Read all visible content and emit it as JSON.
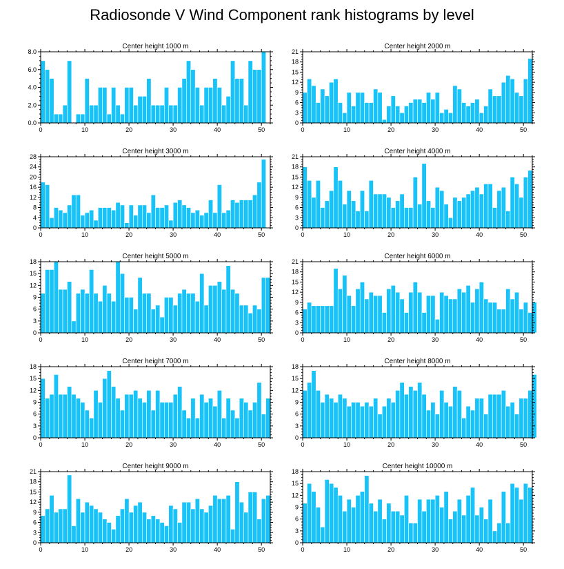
{
  "title": "Radiosonde V Wind Component rank histograms by level",
  "colors": {
    "bar": "#19c3f7",
    "frame": "#000000",
    "background": "#ffffff"
  },
  "chart_data": [
    {
      "type": "bar",
      "title": "Center height 1000 m",
      "xlabel": "",
      "ylabel": "",
      "xlim": [
        0,
        52
      ],
      "ylim": [
        0,
        8
      ],
      "x_ticks": [
        0,
        10,
        20,
        30,
        40,
        50
      ],
      "y_ticks": [
        0,
        2,
        4,
        6,
        8
      ],
      "y_tick_labels": [
        "0.0",
        "2.0",
        "4.0",
        "6.0",
        "8.0"
      ],
      "values": [
        7,
        6,
        5,
        1,
        1,
        2,
        7,
        0,
        1,
        1,
        5,
        2,
        2,
        4,
        4,
        1,
        4,
        2,
        1,
        4,
        4,
        2,
        3,
        3,
        5,
        2,
        2,
        2,
        4,
        2,
        2,
        4,
        5,
        7,
        6,
        4,
        2,
        4,
        4,
        5,
        4,
        2,
        3,
        7,
        5,
        5,
        2,
        7,
        6,
        6,
        8
      ]
    },
    {
      "type": "bar",
      "title": "Center height 2000 m",
      "xlabel": "",
      "ylabel": "",
      "xlim": [
        0,
        52
      ],
      "ylim": [
        0,
        21
      ],
      "x_ticks": [
        0,
        10,
        20,
        30,
        40,
        50
      ],
      "y_ticks": [
        0,
        3,
        6,
        9,
        12,
        15,
        18,
        21
      ],
      "y_tick_labels": [
        "0",
        "3",
        "6",
        "9",
        "12",
        "15",
        "18",
        "21"
      ],
      "values": [
        9,
        13,
        11,
        6,
        10,
        8,
        12,
        13,
        6,
        3,
        9,
        5,
        9,
        9,
        6,
        6,
        10,
        9,
        1,
        5,
        8,
        5,
        3,
        5,
        6,
        7,
        7,
        6,
        9,
        7,
        9,
        3,
        4,
        3,
        11,
        10,
        6,
        5,
        6,
        7,
        3,
        5,
        10,
        8,
        8,
        12,
        14,
        13,
        9,
        8,
        13,
        19
      ]
    },
    {
      "type": "bar",
      "title": "Center height 3000 m",
      "xlabel": "",
      "ylabel": "",
      "xlim": [
        0,
        52
      ],
      "ylim": [
        0,
        28
      ],
      "x_ticks": [
        0,
        10,
        20,
        30,
        40,
        50
      ],
      "y_ticks": [
        0,
        4,
        8,
        12,
        16,
        20,
        24,
        28
      ],
      "y_tick_labels": [
        "0",
        "4",
        "8",
        "12",
        "16",
        "20",
        "24",
        "28"
      ],
      "values": [
        18,
        17,
        4,
        8,
        7,
        6,
        9,
        13,
        13,
        5,
        6,
        7,
        3,
        8,
        8,
        8,
        7,
        10,
        9,
        2,
        9,
        5,
        9,
        9,
        6,
        13,
        8,
        8,
        9,
        3,
        10,
        11,
        9,
        8,
        6,
        7,
        5,
        6,
        11,
        6,
        17,
        6,
        7,
        11,
        10,
        11,
        11,
        11,
        13,
        18,
        27
      ]
    },
    {
      "type": "bar",
      "title": "Center height 4000 m",
      "xlabel": "",
      "ylabel": "",
      "xlim": [
        0,
        52
      ],
      "ylim": [
        0,
        21
      ],
      "x_ticks": [
        0,
        10,
        20,
        30,
        40,
        50
      ],
      "y_ticks": [
        0,
        3,
        6,
        9,
        12,
        15,
        18,
        21
      ],
      "y_tick_labels": [
        "0",
        "3",
        "6",
        "9",
        "12",
        "15",
        "18",
        "21"
      ],
      "values": [
        18,
        14,
        9,
        14,
        6,
        8,
        11,
        18,
        14,
        7,
        11,
        8,
        5,
        11,
        5,
        14,
        10,
        10,
        10,
        9,
        6,
        8,
        10,
        6,
        6,
        15,
        7,
        19,
        8,
        6,
        12,
        11,
        7,
        3,
        9,
        8,
        9,
        10,
        11,
        12,
        10,
        13,
        13,
        6,
        11,
        12,
        5,
        15,
        13,
        9,
        15,
        17
      ]
    },
    {
      "type": "bar",
      "title": "Center height 5000 m",
      "xlabel": "",
      "ylabel": "",
      "xlim": [
        0,
        52
      ],
      "ylim": [
        0,
        18
      ],
      "x_ticks": [
        0,
        10,
        20,
        30,
        40,
        50
      ],
      "y_ticks": [
        0,
        3,
        6,
        9,
        12,
        15,
        18
      ],
      "y_tick_labels": [
        "0",
        "3",
        "6",
        "9",
        "12",
        "15",
        "18"
      ],
      "values": [
        10,
        16,
        16,
        18,
        11,
        11,
        13,
        3,
        10,
        11,
        10,
        16,
        10,
        8,
        12,
        10,
        8,
        18,
        15,
        9,
        9,
        6,
        14,
        10,
        10,
        6,
        7,
        4,
        9,
        9,
        7,
        10,
        11,
        10,
        10,
        8,
        15,
        7,
        12,
        12,
        13,
        11,
        17,
        11,
        10,
        7,
        7,
        5,
        7,
        6,
        14,
        14
      ]
    },
    {
      "type": "bar",
      "title": "Center height 6000 m",
      "xlabel": "",
      "ylabel": "",
      "xlim": [
        0,
        52
      ],
      "ylim": [
        0,
        21
      ],
      "x_ticks": [
        0,
        10,
        20,
        30,
        40,
        50
      ],
      "y_ticks": [
        0,
        3,
        6,
        9,
        12,
        15,
        18,
        21
      ],
      "y_tick_labels": [
        "0",
        "3",
        "6",
        "9",
        "12",
        "15",
        "18",
        "21"
      ],
      "values": [
        7,
        9,
        8,
        8,
        8,
        8,
        8,
        19,
        13,
        17,
        11,
        8,
        13,
        15,
        10,
        12,
        11,
        11,
        6,
        13,
        14,
        12,
        10,
        6,
        12,
        15,
        12,
        6,
        11,
        11,
        4,
        12,
        11,
        10,
        10,
        13,
        12,
        14,
        9,
        13,
        15,
        10,
        9,
        9,
        7,
        7,
        13,
        10,
        12,
        7,
        9,
        6,
        9
      ]
    },
    {
      "type": "bar",
      "title": "Center height 7000 m",
      "xlabel": "",
      "ylabel": "",
      "xlim": [
        0,
        52
      ],
      "ylim": [
        0,
        18
      ],
      "x_ticks": [
        0,
        10,
        20,
        30,
        40,
        50
      ],
      "y_ticks": [
        0,
        3,
        6,
        9,
        12,
        15,
        18
      ],
      "y_tick_labels": [
        "0",
        "3",
        "6",
        "9",
        "12",
        "15",
        "18"
      ],
      "values": [
        15,
        10,
        11,
        16,
        11,
        11,
        13,
        11,
        10,
        9,
        7,
        5,
        12,
        9,
        15,
        17,
        13,
        10,
        7,
        11,
        11,
        12,
        10,
        9,
        12,
        7,
        12,
        9,
        9,
        9,
        11,
        13,
        7,
        5,
        10,
        5,
        11,
        9,
        10,
        8,
        12,
        5,
        10,
        7,
        5,
        10,
        9,
        7,
        9,
        14,
        6,
        10
      ]
    },
    {
      "type": "bar",
      "title": "Center height 8000 m",
      "xlabel": "",
      "ylabel": "",
      "xlim": [
        0,
        52
      ],
      "ylim": [
        0,
        18
      ],
      "x_ticks": [
        0,
        10,
        20,
        30,
        40,
        50
      ],
      "y_ticks": [
        0,
        3,
        6,
        9,
        12,
        15,
        18
      ],
      "y_tick_labels": [
        "0",
        "3",
        "6",
        "9",
        "12",
        "15",
        "18"
      ],
      "values": [
        12,
        14,
        17,
        12,
        9,
        11,
        10,
        9,
        11,
        10,
        8,
        9,
        9,
        8,
        9,
        8,
        10,
        6,
        8,
        10,
        9,
        12,
        14,
        11,
        13,
        12,
        14,
        11,
        7,
        9,
        6,
        12,
        9,
        8,
        13,
        12,
        5,
        8,
        7,
        10,
        10,
        6,
        11,
        11,
        11,
        12,
        8,
        9,
        6,
        10,
        10,
        12,
        16
      ]
    },
    {
      "type": "bar",
      "title": "Center height 9000 m",
      "xlabel": "",
      "ylabel": "",
      "xlim": [
        0,
        52
      ],
      "ylim": [
        0,
        21
      ],
      "x_ticks": [
        0,
        10,
        20,
        30,
        40,
        50
      ],
      "y_ticks": [
        0,
        3,
        6,
        9,
        12,
        15,
        18,
        21
      ],
      "y_tick_labels": [
        "0",
        "3",
        "6",
        "9",
        "12",
        "15",
        "18",
        "21"
      ],
      "values": [
        8,
        10,
        14,
        9,
        10,
        10,
        20,
        5,
        13,
        9,
        12,
        11,
        10,
        9,
        7,
        6,
        4,
        8,
        10,
        13,
        9,
        11,
        12,
        9,
        7,
        8,
        7,
        6,
        5,
        11,
        10,
        6,
        12,
        12,
        10,
        13,
        10,
        9,
        11,
        14,
        13,
        13,
        14,
        4,
        18,
        12,
        9,
        15,
        15,
        7,
        13,
        14
      ]
    },
    {
      "type": "bar",
      "title": "Center height 10000 m",
      "xlabel": "",
      "ylabel": "",
      "xlim": [
        0,
        52
      ],
      "ylim": [
        0,
        18
      ],
      "x_ticks": [
        0,
        10,
        20,
        30,
        40,
        50
      ],
      "y_ticks": [
        0,
        3,
        6,
        9,
        12,
        15,
        18
      ],
      "y_tick_labels": [
        "0",
        "3",
        "6",
        "9",
        "12",
        "15",
        "18"
      ],
      "values": [
        10,
        15,
        13,
        9,
        4,
        16,
        15,
        14,
        12,
        8,
        11,
        9,
        12,
        13,
        17,
        10,
        8,
        11,
        6,
        10,
        8,
        8,
        7,
        12,
        5,
        5,
        11,
        8,
        11,
        11,
        12,
        9,
        13,
        6,
        8,
        11,
        7,
        12,
        14,
        7,
        9,
        6,
        11,
        3,
        5,
        13,
        5,
        15,
        14,
        11,
        15,
        14
      ]
    }
  ]
}
